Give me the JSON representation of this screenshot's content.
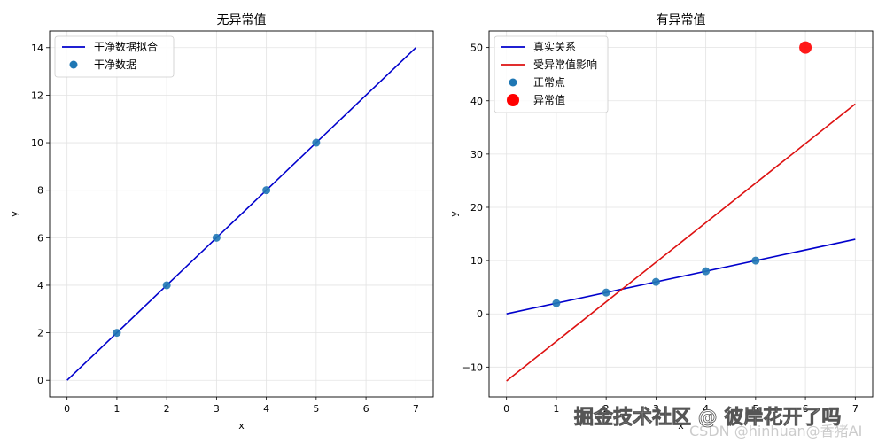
{
  "chart_data": [
    {
      "type": "line",
      "title": "无异常值",
      "xlabel": "x",
      "ylabel": "y",
      "xlim": [
        -0.35,
        7.35
      ],
      "ylim": [
        -0.7,
        14.7
      ],
      "xticks": [
        0,
        1,
        2,
        3,
        4,
        5,
        6,
        7
      ],
      "yticks": [
        0,
        2,
        4,
        6,
        8,
        10,
        12,
        14
      ],
      "grid": true,
      "legend_position": "top-left",
      "series": [
        {
          "name": "干净数据拟合",
          "kind": "line",
          "color": "#0000cc",
          "x": [
            0,
            7
          ],
          "y": [
            0,
            14
          ]
        },
        {
          "name": "干净数据",
          "kind": "scatter",
          "color": "#1f77b4",
          "x": [
            1,
            2,
            3,
            4,
            5
          ],
          "y": [
            2,
            4,
            6,
            8,
            10
          ]
        }
      ]
    },
    {
      "type": "line",
      "title": "有异常值",
      "xlabel": "x",
      "ylabel": "y",
      "xlim": [
        -0.35,
        7.35
      ],
      "ylim": [
        -15.6,
        53.1
      ],
      "xticks": [
        0,
        1,
        2,
        3,
        4,
        5,
        6,
        7
      ],
      "yticks": [
        -10,
        0,
        10,
        20,
        30,
        40,
        50
      ],
      "grid": true,
      "legend_position": "top-left",
      "series": [
        {
          "name": "真实关系",
          "kind": "line",
          "color": "#0000cc",
          "x": [
            0,
            7
          ],
          "y": [
            0,
            14
          ]
        },
        {
          "name": "受异常值影响",
          "kind": "line",
          "color": "#dd1111",
          "x": [
            0,
            7
          ],
          "y": [
            -12.6,
            39.4
          ]
        },
        {
          "name": "正常点",
          "kind": "scatter",
          "color": "#1f77b4",
          "x": [
            1,
            2,
            3,
            4,
            5
          ],
          "y": [
            2,
            4,
            6,
            8,
            10
          ]
        },
        {
          "name": "异常值",
          "kind": "scatter-large",
          "color": "#ff0000",
          "x": [
            6
          ],
          "y": [
            50
          ]
        }
      ]
    }
  ],
  "watermark": {
    "text": "掘金技术社区 @ 彼岸花开了吗",
    "subtext": "CSDN @hinhuan@香猪AI"
  }
}
